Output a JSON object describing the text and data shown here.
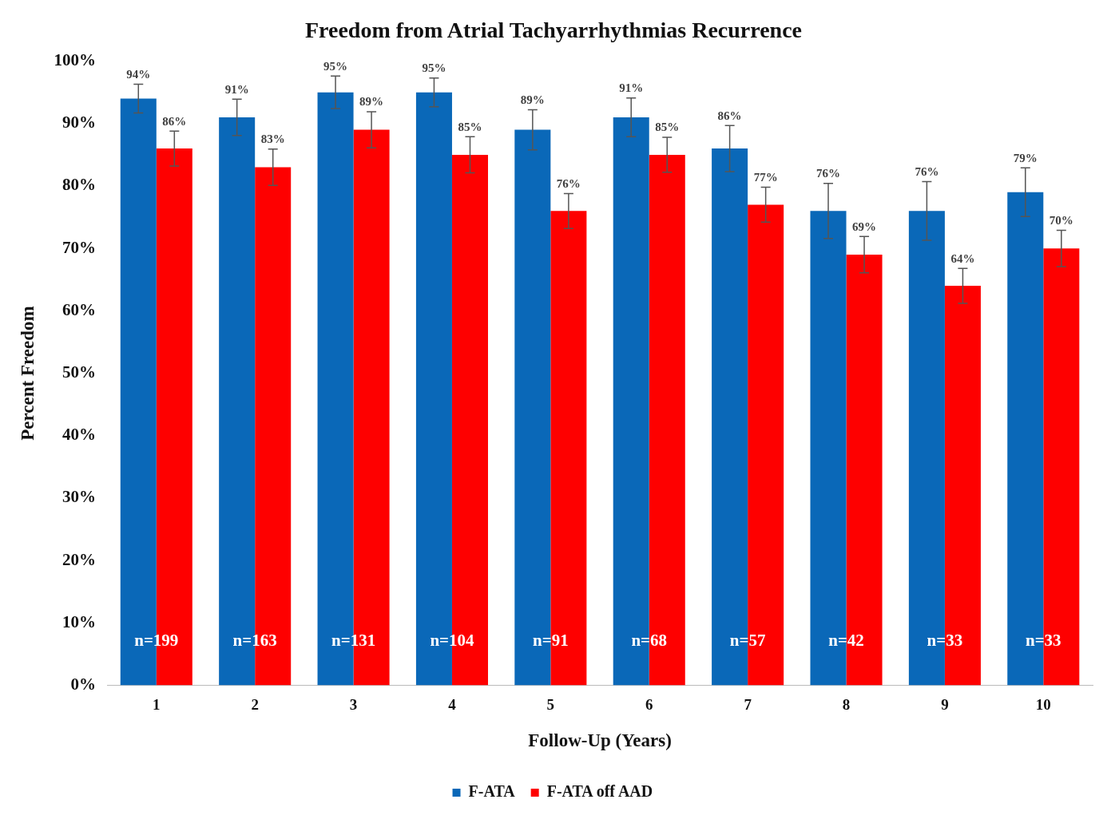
{
  "chart_data": {
    "type": "bar",
    "title": "Freedom from Atrial Tachyarrhythmias Recurrence",
    "xlabel": "Follow-Up (Years)",
    "ylabel": "Percent Freedom",
    "categories": [
      "1",
      "2",
      "3",
      "4",
      "5",
      "6",
      "7",
      "8",
      "9",
      "10"
    ],
    "series": [
      {
        "name": "F-ATA",
        "color": "#0a68b8",
        "values": [
          94,
          91,
          95,
          95,
          89,
          91,
          86,
          76,
          76,
          79
        ],
        "value_labels": [
          "94%",
          "91%",
          "95%",
          "95%",
          "89%",
          "91%",
          "86%",
          "76%",
          "76%",
          "79%"
        ],
        "errors": [
          2.3,
          2.9,
          2.6,
          2.3,
          3.2,
          3.1,
          3.7,
          4.4,
          4.7,
          3.9
        ]
      },
      {
        "name": "F-ATA off AAD",
        "color": "#fe0000",
        "values": [
          86,
          83,
          89,
          85,
          76,
          85,
          77,
          69,
          64,
          70
        ],
        "value_labels": [
          "86%",
          "83%",
          "89%",
          "85%",
          "76%",
          "85%",
          "77%",
          "69%",
          "64%",
          "70%"
        ],
        "errors": [
          2.8,
          2.9,
          2.9,
          2.9,
          2.8,
          2.8,
          2.8,
          2.9,
          2.8,
          2.9
        ]
      }
    ],
    "ylim": [
      0,
      100
    ],
    "yticks": [
      {
        "value": 0,
        "label": "0%"
      },
      {
        "value": 10,
        "label": "10%"
      },
      {
        "value": 20,
        "label": "20%"
      },
      {
        "value": 30,
        "label": "30%"
      },
      {
        "value": 40,
        "label": "40%"
      },
      {
        "value": 50,
        "label": "50%"
      },
      {
        "value": 60,
        "label": "60%"
      },
      {
        "value": 70,
        "label": "70%"
      },
      {
        "value": 80,
        "label": "80%"
      },
      {
        "value": 90,
        "label": "90%"
      },
      {
        "value": 100,
        "label": "100%"
      }
    ],
    "grid": false,
    "legend": "bottom",
    "annotations": [
      {
        "text": "n=199",
        "x": "1",
        "y": 7
      },
      {
        "text": "n=163",
        "x": "2",
        "y": 7
      },
      {
        "text": "n=131",
        "x": "3",
        "y": 7
      },
      {
        "text": "n=104",
        "x": "4",
        "y": 7
      },
      {
        "text": "n=91",
        "x": "5",
        "y": 7
      },
      {
        "text": "n=68",
        "x": "6",
        "y": 7
      },
      {
        "text": "n=57",
        "x": "7",
        "y": 7
      },
      {
        "text": "n=42",
        "x": "8",
        "y": 7
      },
      {
        "text": "n=33",
        "x": "9",
        "y": 7
      },
      {
        "text": "n=33",
        "x": "10",
        "y": 7
      }
    ]
  }
}
